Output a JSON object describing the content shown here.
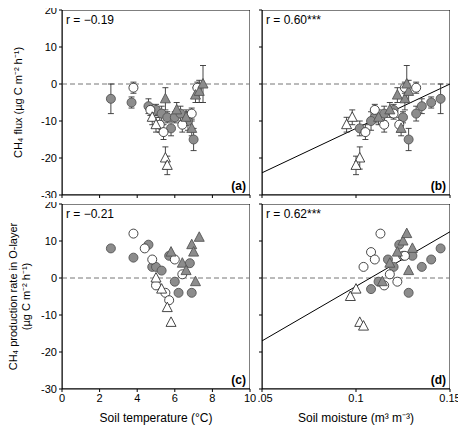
{
  "chart_data": [
    {
      "type": "scatter",
      "title": "(a)",
      "annotations": [
        "r = −0.19"
      ],
      "ylabel": "CH₄ flux (µg C m⁻² h⁻¹)",
      "xlim": [
        0,
        10
      ],
      "xticks": [
        0,
        2,
        4,
        6,
        8,
        10
      ],
      "ylim": [
        -30,
        20
      ],
      "yticks": [
        -30,
        -20,
        -10,
        0,
        10,
        20
      ],
      "hlines": [
        0
      ],
      "tick_labels": "y",
      "series": [
        {
          "color": "#8c8c8c",
          "marker": "circle",
          "x": [
            2.6,
            3.7,
            4.6,
            5.0,
            5.3,
            5.6,
            5.8,
            6.0,
            6.3,
            6.7,
            7.0
          ],
          "values": [
            -4,
            -5,
            -6,
            -7,
            -8,
            -9,
            -12,
            -9,
            -8,
            -10,
            -15
          ],
          "errors": [
            4,
            1.5,
            2,
            1.5,
            2,
            1.5,
            2,
            1.5,
            2,
            2.5,
            3
          ]
        },
        {
          "color": "#ffffff",
          "marker": "circle",
          "x": [
            3.8,
            4.7,
            5.2,
            5.4,
            6.4,
            6.9,
            7.2
          ],
          "values": [
            -1,
            -7,
            -11,
            -13,
            -11,
            -8,
            -1
          ],
          "errors": [
            1.5,
            1.5,
            2,
            2,
            2,
            1.5,
            1.5
          ]
        },
        {
          "color": "#8c8c8c",
          "marker": "triangle",
          "x": [
            5.5,
            6.1,
            6.6,
            6.9,
            7.1,
            7.3,
            7.5
          ],
          "values": [
            -4,
            -7,
            -9,
            -12,
            -3,
            -2,
            0
          ],
          "errors": [
            3,
            2,
            2,
            2,
            2,
            3,
            5
          ]
        },
        {
          "color": "#ffffff",
          "marker": "triangle",
          "x": [
            4.8,
            5.0,
            5.5,
            5.6
          ],
          "values": [
            -9,
            -11,
            -20,
            -22
          ],
          "errors": [
            2,
            2,
            3,
            2.5
          ]
        }
      ]
    },
    {
      "type": "scatter",
      "title": "(b)",
      "annotations": [
        "r = 0.60***"
      ],
      "xlim": [
        0.05,
        0.15
      ],
      "xticks": [
        0.05,
        0.1,
        0.15
      ],
      "ylim": [
        -30,
        20
      ],
      "yticks": [
        -30,
        -20,
        -10,
        0,
        10,
        20
      ],
      "hlines": [
        0
      ],
      "tick_labels": false,
      "series": [
        {
          "color": "#8c8c8c",
          "marker": "circle",
          "x": [
            0.145,
            0.14,
            0.135,
            0.12,
            0.115,
            0.11,
            0.102,
            0.125,
            0.132,
            0.108,
            0.128
          ],
          "values": [
            -4,
            -5,
            -6,
            -7,
            -8,
            -9,
            -12,
            -9,
            -8,
            -10,
            -15
          ],
          "errors": [
            4,
            1.5,
            2,
            1.5,
            2,
            1.5,
            2,
            1.5,
            2,
            2.5,
            3
          ]
        },
        {
          "color": "#ffffff",
          "marker": "circle",
          "x": [
            0.126,
            0.11,
            0.115,
            0.105,
            0.123,
            0.12,
            0.132
          ],
          "values": [
            -1,
            -7,
            -11,
            -13,
            -11,
            -8,
            -1
          ],
          "errors": [
            1.5,
            1.5,
            2,
            2,
            2,
            1.5,
            1.5
          ]
        },
        {
          "color": "#8c8c8c",
          "marker": "triangle",
          "x": [
            0.126,
            0.118,
            0.112,
            0.124,
            0.122,
            0.128,
            0.127
          ],
          "values": [
            -4,
            -7,
            -9,
            -12,
            -3,
            -2,
            0
          ],
          "errors": [
            3,
            2,
            2,
            2,
            2,
            3,
            5
          ]
        },
        {
          "color": "#ffffff",
          "marker": "triangle",
          "x": [
            0.098,
            0.095,
            0.102,
            0.1
          ],
          "values": [
            -9,
            -11,
            -20,
            -22
          ],
          "errors": [
            2,
            2,
            3,
            2.5
          ]
        },
        {
          "type": "line",
          "line_style": "solid",
          "color": "#000000",
          "x": [
            0.05,
            0.15
          ],
          "values": [
            -24,
            0
          ]
        }
      ]
    },
    {
      "type": "scatter",
      "title": "(c)",
      "annotations": [
        "r = −0.21"
      ],
      "ylabel": "CH₄ production rate in O-layer (µg C m⁻² h⁻¹)",
      "xlabel": "Soil temperature (°C)",
      "xlim": [
        0,
        10
      ],
      "xticks": [
        0,
        2,
        4,
        6,
        8,
        10
      ],
      "ylim": [
        -30,
        20
      ],
      "yticks": [
        -30,
        -20,
        -10,
        0,
        10,
        20
      ],
      "hlines": [
        0
      ],
      "tick_labels": true,
      "series": [
        {
          "color": "#8c8c8c",
          "marker": "circle",
          "x": [
            2.6,
            3.8,
            4.6,
            4.8,
            5.0,
            5.3,
            5.7,
            6.0,
            6.2,
            6.8,
            6.9
          ],
          "values": [
            8,
            5.5,
            9,
            3,
            3,
            2,
            6,
            -1,
            -4,
            4,
            -4
          ]
        },
        {
          "color": "#ffffff",
          "marker": "circle",
          "x": [
            3.8,
            4.4,
            4.8,
            5.0,
            5.5,
            5.7,
            6.0,
            6.4
          ],
          "values": [
            12,
            8,
            5,
            -2,
            -4,
            -6,
            5,
            1
          ]
        },
        {
          "color": "#8c8c8c",
          "marker": "triangle",
          "x": [
            5.8,
            6.4,
            6.6,
            6.9,
            7.0,
            7.3,
            7.1
          ],
          "values": [
            7,
            4,
            2,
            9,
            7,
            11,
            -1
          ]
        },
        {
          "color": "#ffffff",
          "marker": "triangle",
          "x": [
            5.0,
            5.3,
            5.6,
            5.8
          ],
          "values": [
            0,
            -3,
            -8,
            -12
          ]
        }
      ]
    },
    {
      "type": "scatter",
      "title": "(d)",
      "annotations": [
        "r = 0.62***"
      ],
      "xlabel": "Soil moisture (m³ m⁻³)",
      "xlim": [
        0.05,
        0.15
      ],
      "xticks": [
        0.05,
        0.1,
        0.15
      ],
      "ylim": [
        -30,
        20
      ],
      "yticks": [
        -30,
        -20,
        -10,
        0,
        10,
        20
      ],
      "hlines": [
        0
      ],
      "tick_labels": "x",
      "series": [
        {
          "color": "#8c8c8c",
          "marker": "circle",
          "x": [
            0.108,
            0.112,
            0.117,
            0.12,
            0.123,
            0.125,
            0.128,
            0.135,
            0.14,
            0.145,
            0.13
          ],
          "values": [
            -3,
            -1,
            5,
            3,
            9,
            6,
            -4,
            3,
            5,
            8,
            6
          ]
        },
        {
          "color": "#ffffff",
          "marker": "circle",
          "x": [
            0.104,
            0.108,
            0.11,
            0.113,
            0.115,
            0.118,
            0.122,
            0.126
          ],
          "values": [
            3,
            7,
            5,
            12,
            -2,
            1,
            -1,
            6
          ]
        },
        {
          "color": "#8c8c8c",
          "marker": "triangle",
          "x": [
            0.114,
            0.118,
            0.122,
            0.125,
            0.127,
            0.128,
            0.13
          ],
          "values": [
            -1,
            4,
            7,
            10,
            12,
            2,
            8
          ]
        },
        {
          "color": "#ffffff",
          "marker": "triangle",
          "x": [
            0.097,
            0.1,
            0.102,
            0.104
          ],
          "values": [
            -5,
            -3,
            -12,
            -13
          ]
        },
        {
          "type": "line",
          "line_style": "solid",
          "color": "#000000",
          "x": [
            0.05,
            0.15
          ],
          "values": [
            -17,
            12.5
          ]
        }
      ]
    }
  ]
}
